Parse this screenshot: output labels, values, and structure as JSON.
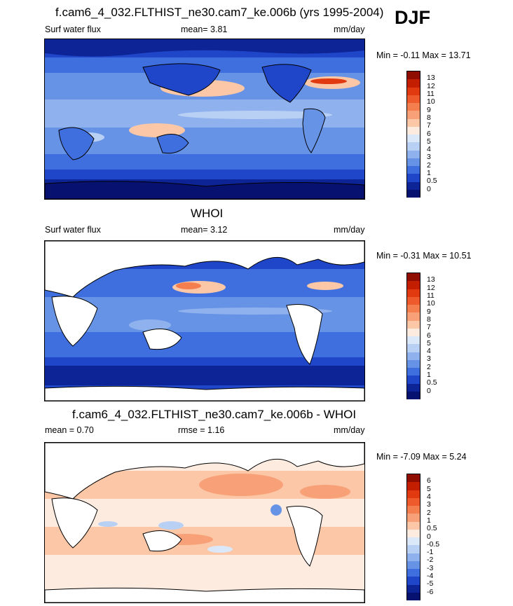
{
  "season": "DJF",
  "panels": [
    {
      "title": "f.cam6_4_032.FLTHIST_ne30.cam7_ke.006b (yrs 1995-2004)",
      "left_label": "Surf water flux",
      "mean_text": "mean=   3.81",
      "units": "mm/day",
      "minmax": "Min =  -0.11 Max =  13.71",
      "colorbar": {
        "labels": [
          "13",
          "12",
          "11",
          "10",
          "9",
          "8",
          "7",
          "6",
          "5",
          "4",
          "3",
          "2",
          "1",
          "0.5",
          "0"
        ],
        "colors": [
          "#8f0d00",
          "#c41e00",
          "#e13a10",
          "#ef5a2c",
          "#f57e4e",
          "#f8a178",
          "#fbc7a6",
          "#fdebe0",
          "#dbe8f9",
          "#b9d0f5",
          "#8fb2ef",
          "#6693e6",
          "#3f6fde",
          "#1f45c9",
          "#0d2496",
          "#071170"
        ]
      }
    },
    {
      "title": "WHOI",
      "left_label": "Surf water flux",
      "mean_text": "mean=   3.12",
      "units": "mm/day",
      "minmax": "Min =  -0.31 Max =  10.51",
      "colorbar": {
        "labels": [
          "13",
          "12",
          "11",
          "10",
          "9",
          "8",
          "7",
          "6",
          "5",
          "4",
          "3",
          "2",
          "1",
          "0.5",
          "0"
        ],
        "colors": [
          "#8f0d00",
          "#c41e00",
          "#e13a10",
          "#ef5a2c",
          "#f57e4e",
          "#f8a178",
          "#fbc7a6",
          "#fdebe0",
          "#dbe8f9",
          "#b9d0f5",
          "#8fb2ef",
          "#6693e6",
          "#3f6fde",
          "#1f45c9",
          "#0d2496",
          "#071170"
        ]
      }
    },
    {
      "title": "f.cam6_4_032.FLTHIST_ne30.cam7_ke.006b - WHOI",
      "left_label": "mean =   0.70",
      "mean_text": "rmse =   1.16",
      "units": "mm/day",
      "minmax": "Min =  -7.09 Max =   5.24",
      "colorbar": {
        "labels": [
          "6",
          "5",
          "4",
          "3",
          "2",
          "1",
          "0.5",
          "0",
          "-0.5",
          "-1",
          "-2",
          "-3",
          "-4",
          "-5",
          "-6"
        ],
        "colors": [
          "#8f0d00",
          "#c41e00",
          "#e13a10",
          "#ef5a2c",
          "#f57e4e",
          "#f8a178",
          "#fbc7a6",
          "#fdebe0",
          "#dbe8f9",
          "#b9d0f5",
          "#8fb2ef",
          "#6693e6",
          "#3f6fde",
          "#1f45c9",
          "#0d2496",
          "#071170"
        ]
      }
    }
  ]
}
